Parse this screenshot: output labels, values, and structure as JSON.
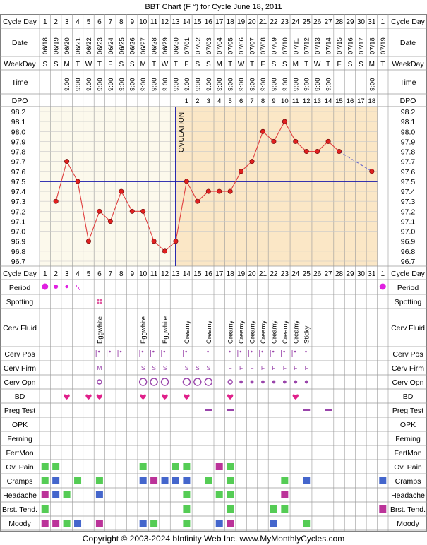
{
  "title": "BBT Chart (F °) for Cycle June 18, 2011",
  "labels": {
    "cycle_day": "Cycle Day",
    "date": "Date",
    "weekday": "WeekDay",
    "time": "Time",
    "dpo": "DPO",
    "ovulation": "OVULATION"
  },
  "cycle_days": [
    "1",
    "2",
    "3",
    "4",
    "5",
    "6",
    "7",
    "8",
    "9",
    "10",
    "11",
    "12",
    "13",
    "14",
    "15",
    "16",
    "17",
    "18",
    "19",
    "20",
    "21",
    "22",
    "23",
    "24",
    "25",
    "26",
    "27",
    "28",
    "29",
    "30",
    "31",
    "1"
  ],
  "dates": [
    "06/18",
    "06/19",
    "06/20",
    "06/21",
    "06/22",
    "06/23",
    "06/24",
    "06/25",
    "06/26",
    "06/27",
    "06/28",
    "06/29",
    "06/30",
    "07/01",
    "07/02",
    "07/03",
    "07/04",
    "07/05",
    "07/06",
    "07/07",
    "07/08",
    "07/09",
    "07/10",
    "07/11",
    "07/12",
    "07/13",
    "07/14",
    "07/15",
    "07/16",
    "07/17",
    "07/18",
    "07/19"
  ],
  "weekdays": [
    "S",
    "S",
    "M",
    "T",
    "W",
    "T",
    "F",
    "S",
    "S",
    "M",
    "T",
    "W",
    "T",
    "F",
    "S",
    "S",
    "M",
    "T",
    "W",
    "T",
    "F",
    "S",
    "S",
    "M",
    "T",
    "W",
    "T",
    "F",
    "S",
    "S",
    "M",
    "T"
  ],
  "times": [
    "",
    "",
    "9:00",
    "9:00",
    "9:00",
    "9:00",
    "9:00",
    "9:00",
    "9:00",
    "9:00",
    "9:00",
    "9:00",
    "9:00",
    "9:00",
    "9:00",
    "9:00",
    "9:00",
    "9:00",
    "9:00",
    "9:00",
    "9:00",
    "9:00",
    "9:00",
    "9:00",
    "9:00",
    "9:00",
    "9:00",
    "",
    "",
    "",
    "9:00",
    ""
  ],
  "dpo": [
    "",
    "",
    "",
    "",
    "",
    "",
    "",
    "",
    "",
    "",
    "",
    "",
    "",
    "1",
    "2",
    "3",
    "4",
    "5",
    "6",
    "7",
    "8",
    "9",
    "10",
    "11",
    "12",
    "13",
    "14",
    "15",
    "16",
    "17",
    "18",
    ""
  ],
  "temp_ticks": [
    "98.2",
    "98.1",
    "98.0",
    "97.9",
    "97.8",
    "97.7",
    "97.6",
    "97.5",
    "97.4",
    "97.3",
    "97.2",
    "97.1",
    "97.0",
    "96.9",
    "96.8",
    "96.7"
  ],
  "chart_data": {
    "type": "line",
    "title": "BBT Chart (F °) for Cycle June 18, 2011",
    "xlabel": "Cycle Day",
    "ylabel": "",
    "ylim": [
      96.7,
      98.2
    ],
    "coverline": 97.5,
    "ovulation_day": 13,
    "grid": true,
    "series": [
      {
        "x": [
          2,
          3,
          4,
          5,
          6,
          7,
          8,
          9,
          10,
          11,
          12,
          13,
          14,
          15,
          16,
          17,
          18,
          19,
          20,
          21,
          22,
          23,
          24,
          25,
          26,
          27,
          28,
          31
        ],
        "values": [
          97.3,
          97.7,
          97.5,
          96.9,
          97.2,
          97.1,
          97.4,
          97.2,
          97.2,
          96.9,
          96.8,
          96.9,
          97.5,
          97.3,
          97.4,
          97.4,
          97.4,
          97.6,
          97.7,
          98.0,
          97.9,
          98.1,
          97.9,
          97.8,
          97.8,
          97.9,
          97.8,
          97.6
        ]
      }
    ],
    "dashed_segment": [
      28,
      31
    ]
  },
  "rows": [
    {
      "label": "Period"
    },
    {
      "label": "Spotting"
    },
    {
      "label": "Cerv Fluid"
    },
    {
      "label": "Cerv Pos"
    },
    {
      "label": "Cerv Firm"
    },
    {
      "label": "Cerv Opn"
    },
    {
      "label": "BD"
    },
    {
      "label": "Preg Test"
    },
    {
      "label": "OPK"
    },
    {
      "label": "Ferning"
    },
    {
      "label": "FertMon"
    },
    {
      "label": "Ov. Pain"
    },
    {
      "label": "Cramps"
    },
    {
      "label": "Headache"
    },
    {
      "label": "Brst. Tend."
    },
    {
      "label": "Moody"
    }
  ],
  "cerv_fluid": [
    "",
    "",
    "",
    "",
    "",
    "Eggwhite",
    "",
    "",
    "",
    "Eggwhite",
    "",
    "Eggwhite",
    "",
    "Creamy",
    "",
    "Creamy",
    "",
    "Creamy",
    "Creamy",
    "Creamy",
    "Creamy",
    "Creamy",
    "Creamy",
    "Creamy",
    "Sticky",
    "",
    "",
    "",
    "",
    "",
    "",
    ""
  ],
  "cerv_firm": [
    "",
    "",
    "",
    "",
    "",
    "M",
    "",
    "",
    "",
    "S",
    "S",
    "S",
    "",
    "S",
    "S",
    "S",
    "",
    "F",
    "F",
    "F",
    "F",
    "F",
    "F",
    "F",
    "F",
    "",
    "",
    "",
    "",
    "",
    "",
    ""
  ],
  "cerv_pos_days": [
    6,
    7,
    8,
    10,
    11,
    12,
    14,
    16,
    18,
    19,
    20,
    21,
    22,
    23,
    24,
    25
  ],
  "cerv_opn": {
    "open": [
      6,
      10,
      11,
      12,
      14,
      15,
      16,
      18
    ],
    "closed": [
      19,
      20,
      21,
      22,
      23,
      24,
      25
    ]
  },
  "period": [
    {
      "day": 1,
      "size": "large"
    },
    {
      "day": 2,
      "size": "medium"
    },
    {
      "day": 3,
      "size": "small"
    },
    {
      "day": 4,
      "size": "spot"
    },
    {
      "day": 32,
      "size": "large"
    }
  ],
  "spotting_days": [
    6
  ],
  "bd_days": [
    3,
    5,
    6,
    10,
    12,
    14,
    18,
    24
  ],
  "preg_test_days": [
    16,
    18,
    25,
    27
  ],
  "symptoms": {
    "ovpain": [
      [
        1,
        "#55cc55"
      ],
      [
        2,
        "#55cc55"
      ],
      [
        10,
        "#55cc55"
      ],
      [
        13,
        "#55cc55"
      ],
      [
        14,
        "#55cc55"
      ],
      [
        17,
        "#bb3399"
      ],
      [
        18,
        "#55cc55"
      ]
    ],
    "cramps": [
      [
        1,
        "#55cc55"
      ],
      [
        2,
        "#4466cc"
      ],
      [
        4,
        "#55cc55"
      ],
      [
        6,
        "#55cc55"
      ],
      [
        10,
        "#4466cc"
      ],
      [
        11,
        "#bb3399"
      ],
      [
        12,
        "#4466cc"
      ],
      [
        13,
        "#4466cc"
      ],
      [
        14,
        "#4466cc"
      ],
      [
        16,
        "#55cc55"
      ],
      [
        18,
        "#55cc55"
      ],
      [
        23,
        "#55cc55"
      ],
      [
        25,
        "#4466cc"
      ],
      [
        32,
        "#4466cc"
      ]
    ],
    "headache": [
      [
        1,
        "#bb3399"
      ],
      [
        2,
        "#4466cc"
      ],
      [
        3,
        "#55cc55"
      ],
      [
        6,
        "#4466cc"
      ],
      [
        14,
        "#55cc55"
      ],
      [
        17,
        "#55cc55"
      ],
      [
        18,
        "#55cc55"
      ],
      [
        23,
        "#bb3399"
      ]
    ],
    "brst": [
      [
        1,
        "#55cc55"
      ],
      [
        14,
        "#55cc55"
      ],
      [
        18,
        "#55cc55"
      ],
      [
        22,
        "#55cc55"
      ],
      [
        23,
        "#55cc55"
      ],
      [
        32,
        "#bb3399"
      ]
    ],
    "moody": [
      [
        1,
        "#bb3399"
      ],
      [
        2,
        "#bb3399"
      ],
      [
        3,
        "#55cc55"
      ],
      [
        4,
        "#4466cc"
      ],
      [
        6,
        "#bb3399"
      ],
      [
        10,
        "#4466cc"
      ],
      [
        11,
        "#55cc55"
      ],
      [
        14,
        "#55cc55"
      ],
      [
        17,
        "#4466cc"
      ],
      [
        18,
        "#bb3399"
      ],
      [
        22,
        "#4466cc"
      ],
      [
        25,
        "#55cc55"
      ]
    ]
  },
  "colors": {
    "follicular_bg": "#fcf9ec",
    "luteal_bg": "#fbe7c6",
    "grid": "#c8c8c8",
    "coverline": "#1a1aaa",
    "temp_line": "#e04040",
    "point_fill": "#e02020",
    "dashed_line": "#6666cc",
    "period": "#e020e0",
    "spotting": "#e05aa0",
    "bd_heart": "#e0208a",
    "cerv_mark": "#9944aa",
    "preg_test": "#9944aa"
  },
  "footer": {
    "copyright": "Copyright © 2003-2024 bInfinity Web Inc.",
    "site": "www.MyMonthlyCycles.com"
  }
}
